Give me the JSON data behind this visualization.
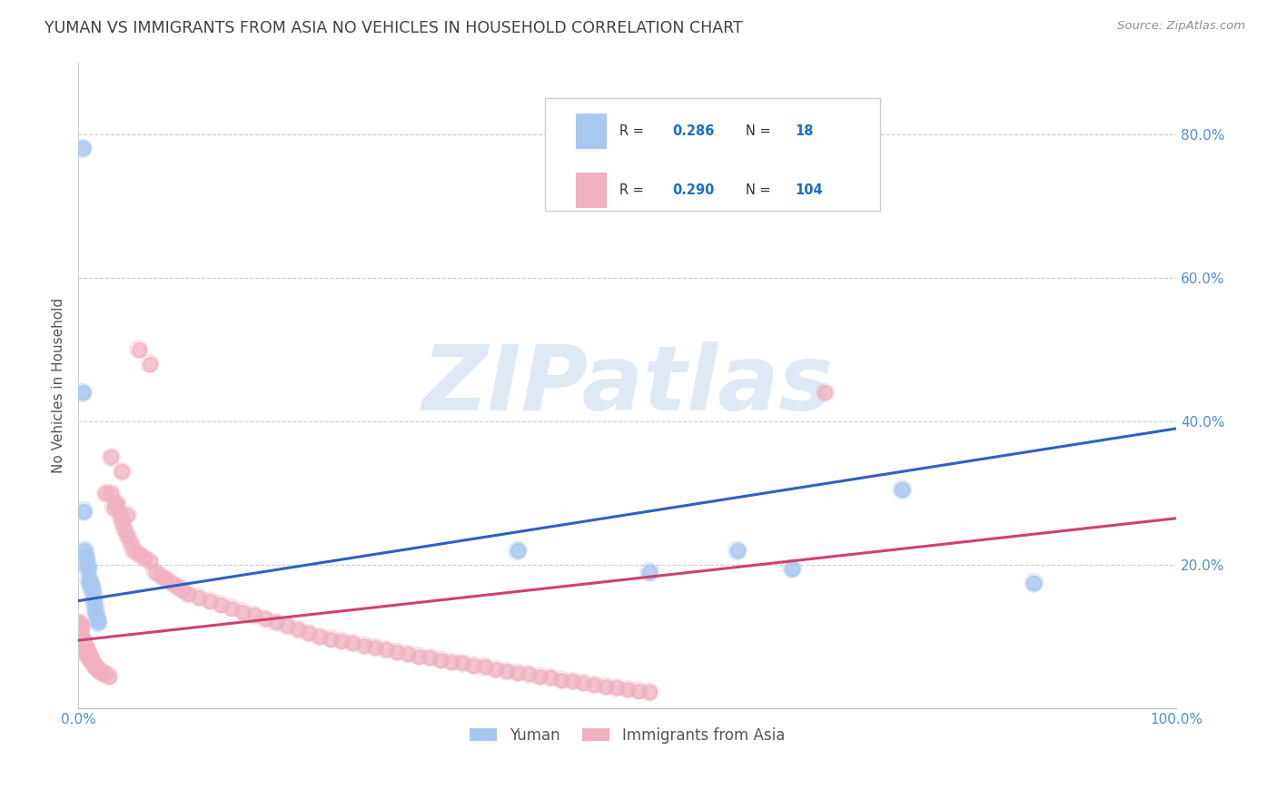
{
  "title": "YUMAN VS IMMIGRANTS FROM ASIA NO VEHICLES IN HOUSEHOLD CORRELATION CHART",
  "source_text": "Source: ZipAtlas.com",
  "ylabel": "No Vehicles in Household",
  "xlim": [
    0.0,
    1.0
  ],
  "ylim": [
    0.0,
    0.9
  ],
  "watermark": "ZIPatlas",
  "color_blue": "#a8c8f0",
  "color_pink": "#f0b0c0",
  "line_blue": "#3060c0",
  "line_pink": "#d04070",
  "title_color": "#404040",
  "source_color": "#909090",
  "axis_color": "#5090d0",
  "blue_x": [
    0.004,
    0.004,
    0.005,
    0.006,
    0.007,
    0.008,
    0.009,
    0.01,
    0.011,
    0.012,
    0.013,
    0.014,
    0.015,
    0.016,
    0.017,
    0.018,
    0.4,
    0.52,
    0.6,
    0.65,
    0.75,
    0.87
  ],
  "blue_y": [
    0.78,
    0.44,
    0.275,
    0.22,
    0.21,
    0.2,
    0.195,
    0.18,
    0.175,
    0.17,
    0.165,
    0.155,
    0.145,
    0.135,
    0.125,
    0.12,
    0.22,
    0.19,
    0.22,
    0.195,
    0.305,
    0.175
  ],
  "pink_x": [
    0.001,
    0.001,
    0.002,
    0.002,
    0.002,
    0.003,
    0.003,
    0.003,
    0.003,
    0.004,
    0.004,
    0.004,
    0.005,
    0.005,
    0.005,
    0.006,
    0.006,
    0.007,
    0.007,
    0.008,
    0.008,
    0.009,
    0.01,
    0.01,
    0.011,
    0.012,
    0.013,
    0.015,
    0.016,
    0.018,
    0.02,
    0.022,
    0.025,
    0.028,
    0.03,
    0.032,
    0.035,
    0.038,
    0.04,
    0.042,
    0.045,
    0.048,
    0.05,
    0.055,
    0.06,
    0.065,
    0.07,
    0.075,
    0.08,
    0.085,
    0.09,
    0.095,
    0.1,
    0.11,
    0.12,
    0.13,
    0.14,
    0.15,
    0.16,
    0.17,
    0.18,
    0.19,
    0.2,
    0.21,
    0.22,
    0.23,
    0.24,
    0.25,
    0.26,
    0.27,
    0.28,
    0.29,
    0.3,
    0.31,
    0.32,
    0.33,
    0.34,
    0.35,
    0.36,
    0.37,
    0.38,
    0.39,
    0.4,
    0.41,
    0.42,
    0.43,
    0.44,
    0.45,
    0.46,
    0.47,
    0.48,
    0.49,
    0.5,
    0.51,
    0.52,
    0.03,
    0.04,
    0.025,
    0.035,
    0.045,
    0.055,
    0.065,
    0.68
  ],
  "pink_y": [
    0.12,
    0.115,
    0.11,
    0.105,
    0.1,
    0.115,
    0.1,
    0.095,
    0.088,
    0.095,
    0.09,
    0.085,
    0.095,
    0.088,
    0.082,
    0.088,
    0.082,
    0.085,
    0.078,
    0.082,
    0.075,
    0.078,
    0.075,
    0.07,
    0.072,
    0.068,
    0.065,
    0.06,
    0.058,
    0.055,
    0.052,
    0.05,
    0.048,
    0.045,
    0.3,
    0.28,
    0.285,
    0.27,
    0.26,
    0.25,
    0.24,
    0.23,
    0.22,
    0.215,
    0.21,
    0.205,
    0.19,
    0.185,
    0.18,
    0.175,
    0.17,
    0.165,
    0.16,
    0.155,
    0.15,
    0.145,
    0.14,
    0.135,
    0.13,
    0.125,
    0.12,
    0.115,
    0.11,
    0.105,
    0.1,
    0.097,
    0.094,
    0.091,
    0.088,
    0.085,
    0.082,
    0.079,
    0.076,
    0.073,
    0.071,
    0.068,
    0.065,
    0.063,
    0.06,
    0.058,
    0.055,
    0.052,
    0.05,
    0.048,
    0.045,
    0.043,
    0.04,
    0.038,
    0.036,
    0.033,
    0.031,
    0.029,
    0.027,
    0.025,
    0.023,
    0.35,
    0.33,
    0.3,
    0.285,
    0.27,
    0.5,
    0.48,
    0.44
  ],
  "blue_line_x": [
    0.0,
    1.0
  ],
  "blue_line_y": [
    0.15,
    0.39
  ],
  "pink_line_x": [
    0.0,
    1.0
  ],
  "pink_line_y": [
    0.095,
    0.265
  ]
}
